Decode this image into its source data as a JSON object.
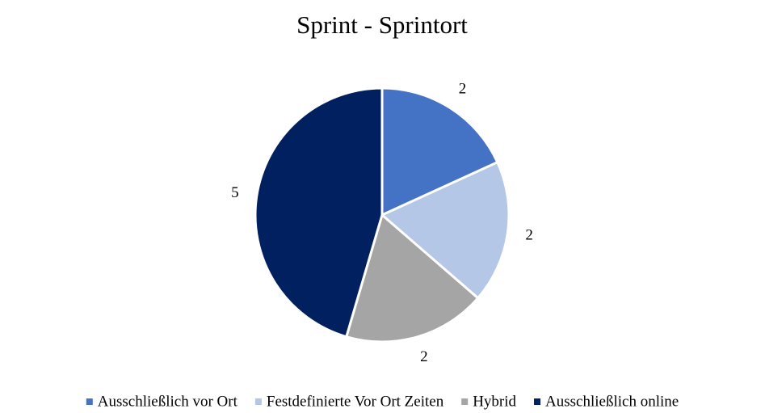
{
  "chart_data": {
    "type": "pie",
    "title": "Sprint - Sprintort",
    "categories": [
      "Ausschließlich vor Ort",
      "Festdefinierte Vor Ort Zeiten",
      "Hybrid",
      "Ausschließlich online"
    ],
    "values": [
      2,
      2,
      2,
      5
    ],
    "colors": [
      "#4472c4",
      "#b4c7e7",
      "#a5a5a5",
      "#002060"
    ],
    "legend": "bottom"
  }
}
